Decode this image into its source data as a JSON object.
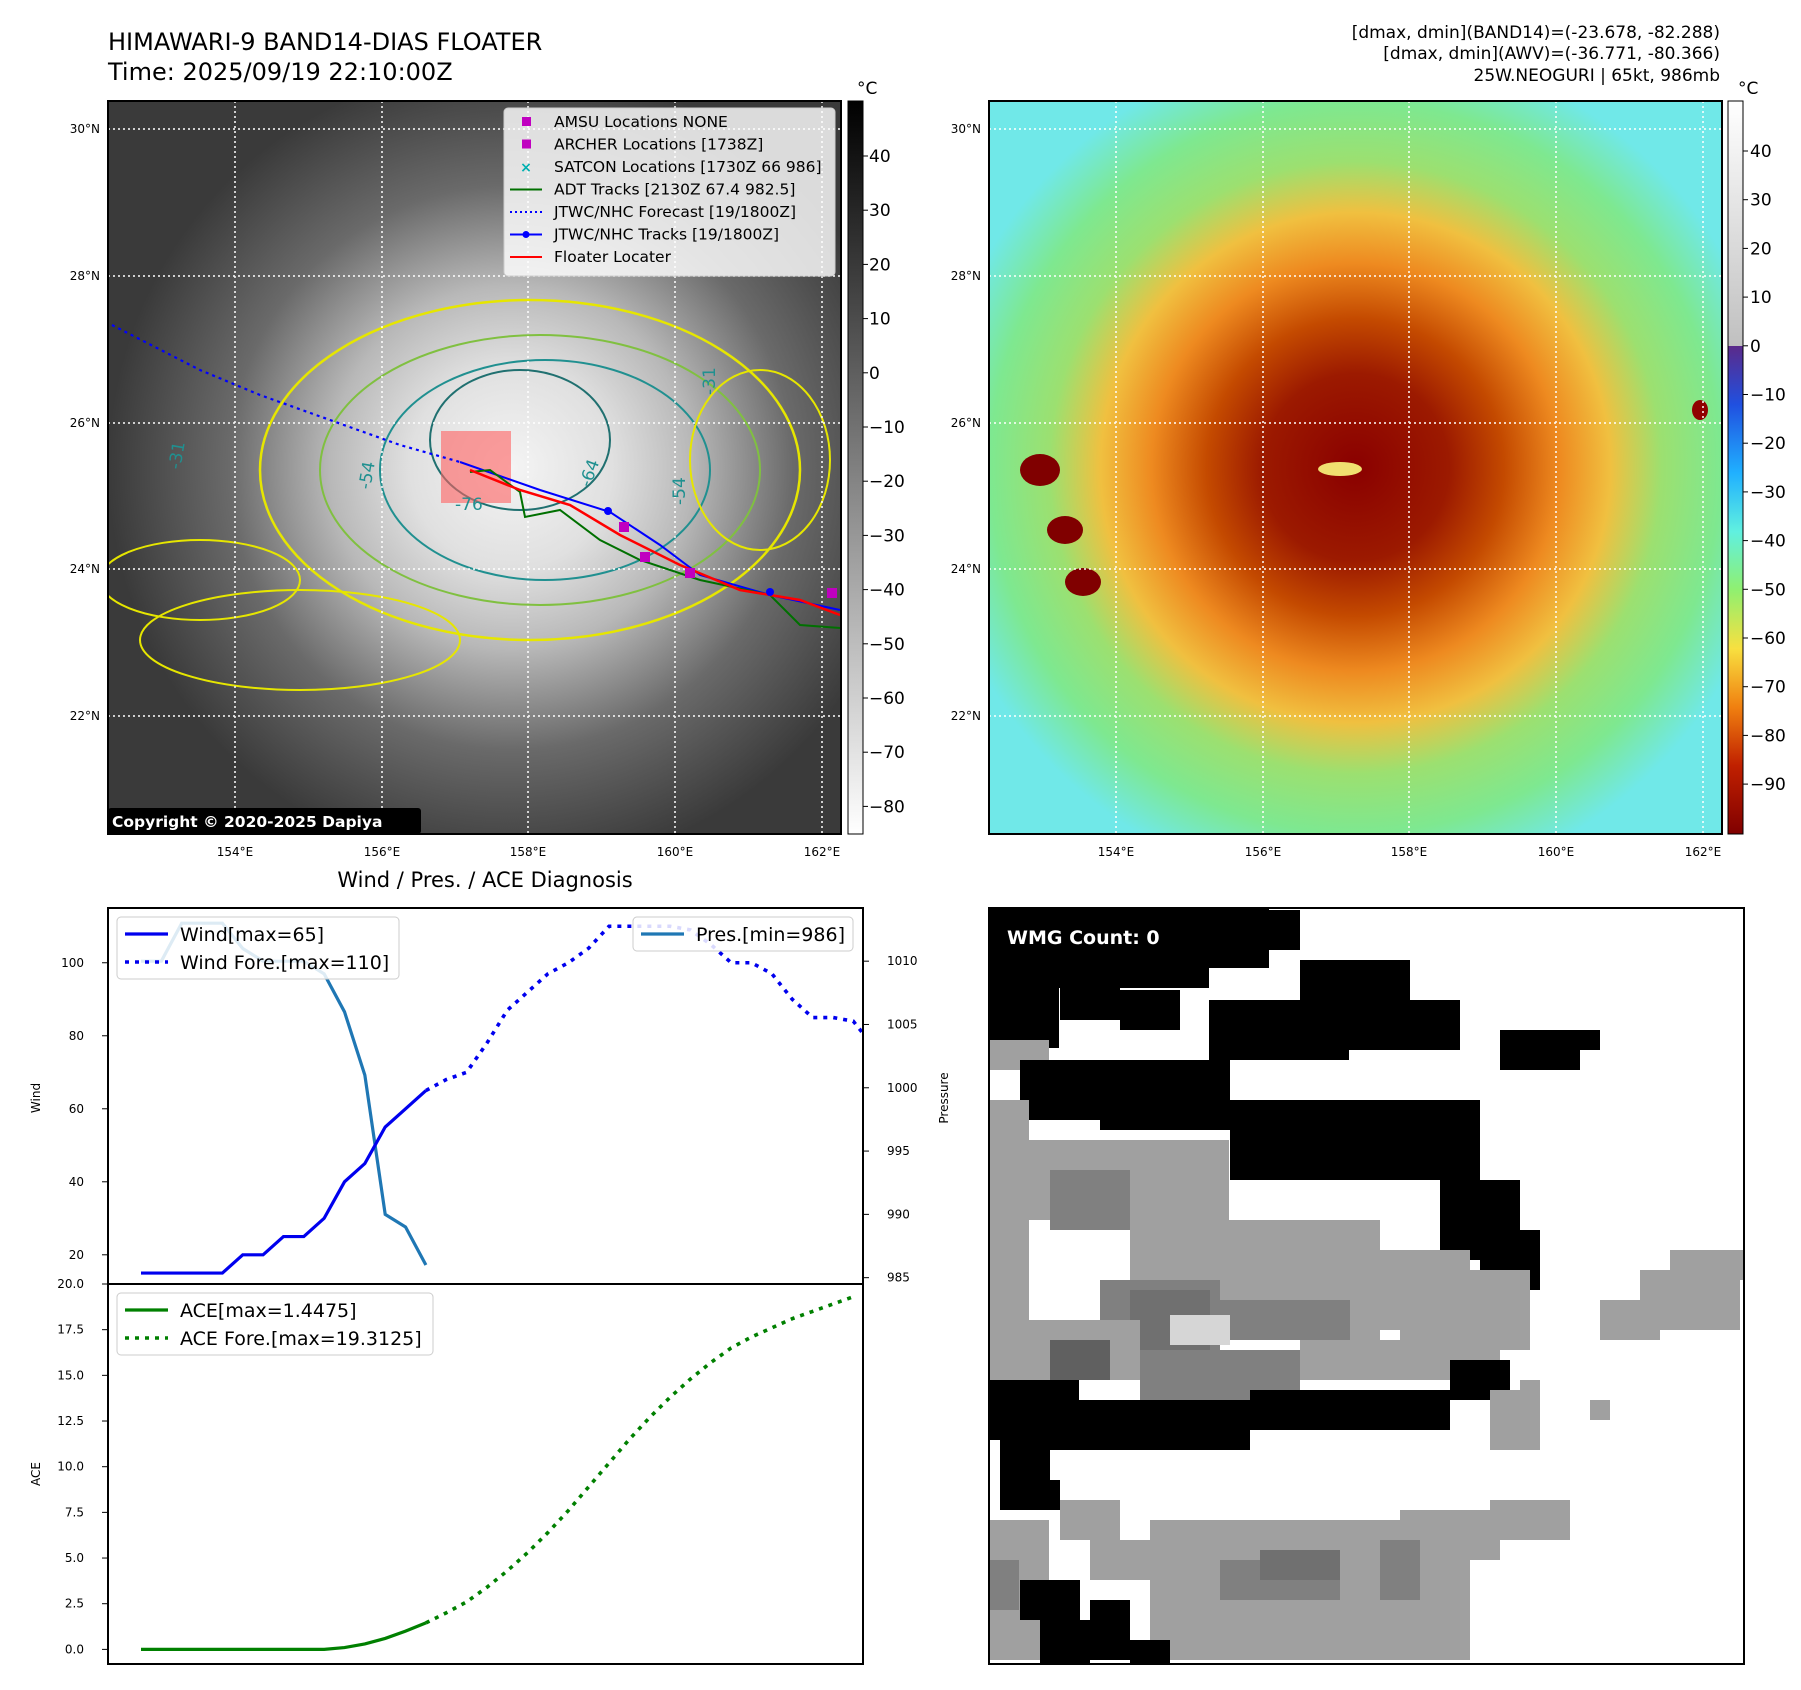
{
  "header": {
    "title_line1": "HIMAWARI-9 BAND14-DIAS FLOATER",
    "title_line2": "Time: 2025/09/19 22:10:00Z",
    "info_line1": "[dmax, dmin](BAND14)=(-23.678, -82.288)",
    "info_line2": "[dmax, dmin](AWV)=(-36.771, -80.366)",
    "info_line3": "25W.NEOGURI | 65kt, 986mb"
  },
  "map": {
    "lat_labels": [
      "30°N",
      "28°N",
      "26°N",
      "24°N",
      "22°N"
    ],
    "lon_labels": [
      "154°E",
      "156°E",
      "158°E",
      "160°E",
      "162°E"
    ],
    "copyright": "Copyright © 2020-2025 Dapiya",
    "contour_labels": [
      "-31",
      "-54",
      "-64",
      "-76",
      "-54",
      "-31"
    ],
    "legend": [
      {
        "label": "AMSU Locations NONE",
        "color": "#c000c0"
      },
      {
        "label": "ARCHER Locations [1738Z]",
        "color": "#c000c0"
      },
      {
        "label": "SATCON Locations [1730Z 66 986]",
        "color": "#00b0b0"
      },
      {
        "label": "ADT Tracks [2130Z 67.4 982.5]",
        "color": "#007000"
      },
      {
        "label": "JTWC/NHC Forecast [19/1800Z]",
        "color": "#0000ff"
      },
      {
        "label": "JTWC/NHC Tracks [19/1800Z]",
        "color": "#0000ff"
      },
      {
        "label": "Floater Locater",
        "color": "#ff0000"
      }
    ]
  },
  "colorbar_left": {
    "unit": "°C",
    "ticks": [
      "40",
      "30",
      "20",
      "10",
      "0",
      "−10",
      "−20",
      "−30",
      "−40",
      "−50",
      "−60",
      "−70",
      "−80"
    ]
  },
  "colorbar_right": {
    "unit": "°C",
    "ticks": [
      "40",
      "30",
      "20",
      "10",
      "0",
      "−10",
      "−20",
      "−30",
      "−40",
      "−50",
      "−60",
      "−70",
      "−80",
      "−90"
    ]
  },
  "diag": {
    "title": "Wind / Pres. / ACE Diagnosis",
    "wind_ylabel": "Wind",
    "pres_ylabel": "Pressure",
    "ace_ylabel": "ACE",
    "legend_wind": "Wind[max=65]",
    "legend_wind_fore": "Wind Fore.[max=110]",
    "legend_pres": "Pres.[min=986]",
    "legend_ace": "ACE[max=1.4475]",
    "legend_ace_fore": "ACE Fore.[max=19.3125]"
  },
  "wmg": {
    "label": "WMG Count: 0"
  },
  "chart_data": [
    {
      "type": "line",
      "name": "wind",
      "ylim": [
        12,
        115
      ],
      "yticks": [
        "100",
        "80",
        "60",
        "40",
        "20"
      ],
      "wind_obs": [
        15,
        15,
        15,
        15,
        15,
        20,
        20,
        25,
        25,
        30,
        40,
        45,
        55,
        60,
        65
      ],
      "wind_fore": [
        65,
        68,
        70,
        78,
        87,
        92,
        97,
        100,
        104,
        110,
        110,
        110,
        110,
        109,
        105,
        100,
        100,
        97,
        90,
        85,
        85,
        84,
        77
      ],
      "pres_ylim": [
        984.5,
        1014.2
      ],
      "pres_yticks": [
        "1010",
        "1005",
        "1000",
        "995",
        "990",
        "985"
      ],
      "pres_obs": [
        1010,
        1010,
        1013,
        1013,
        1013,
        1011,
        1010,
        1010,
        1010,
        1009,
        1006,
        1001,
        990,
        989,
        986
      ]
    },
    {
      "type": "line",
      "name": "ace",
      "ylim": [
        -0.8,
        20.0
      ],
      "yticks": [
        "20.0",
        "17.5",
        "15.0",
        "12.5",
        "10.0",
        "7.5",
        "5.0",
        "2.5",
        "0.0"
      ],
      "ace_obs": [
        0,
        0,
        0,
        0,
        0,
        0,
        0,
        0,
        0,
        0,
        0.1,
        0.3,
        0.6,
        1.0,
        1.45
      ],
      "ace_fore": [
        1.45,
        2.0,
        2.6,
        3.4,
        4.3,
        5.3,
        6.4,
        7.6,
        8.9,
        10.2,
        11.5,
        12.7,
        13.8,
        14.8,
        15.7,
        16.5,
        17.1,
        17.6,
        18.1,
        18.5,
        18.9,
        19.3
      ]
    }
  ]
}
